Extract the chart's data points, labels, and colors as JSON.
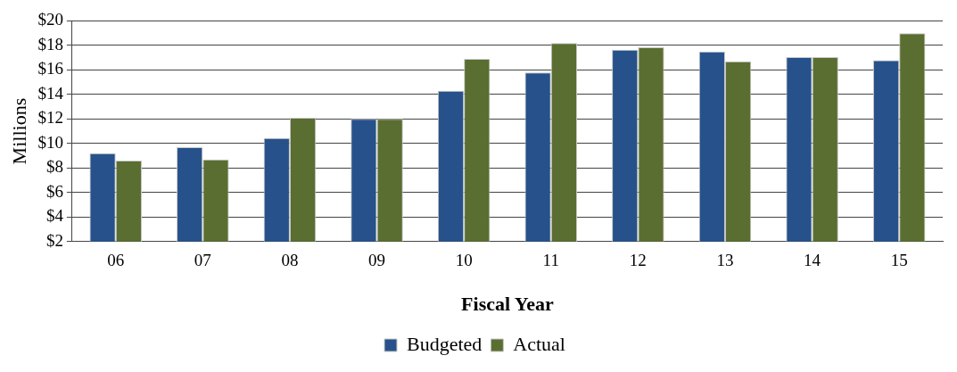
{
  "chart_data": {
    "type": "bar",
    "xlabel": "Fiscal Year",
    "ylabel": "Millions",
    "categories": [
      "06",
      "07",
      "08",
      "09",
      "10",
      "11",
      "12",
      "13",
      "14",
      "15"
    ],
    "series": [
      {
        "name": "Budgeted",
        "color": "#27518a",
        "values": [
          9.2,
          9.7,
          10.45,
          12.0,
          14.3,
          15.8,
          17.65,
          17.5,
          17.05,
          16.8
        ]
      },
      {
        "name": "Actual",
        "color": "#5a6e31",
        "values": [
          8.6,
          8.7,
          12.1,
          12.0,
          16.9,
          18.2,
          17.85,
          16.7,
          17.05,
          19.0
        ]
      }
    ],
    "ylim": [
      2,
      20
    ],
    "yticks": [
      {
        "value": 2,
        "label": "$2"
      },
      {
        "value": 4,
        "label": "$4"
      },
      {
        "value": 6,
        "label": "$6"
      },
      {
        "value": 8,
        "label": "$8"
      },
      {
        "value": 10,
        "label": "$10"
      },
      {
        "value": 12,
        "label": "$12"
      },
      {
        "value": 14,
        "label": "$14"
      },
      {
        "value": 16,
        "label": "$16"
      },
      {
        "value": 18,
        "label": "$18"
      },
      {
        "value": 20,
        "label": "$20"
      }
    ],
    "grid": "y",
    "legend": "bottom"
  }
}
